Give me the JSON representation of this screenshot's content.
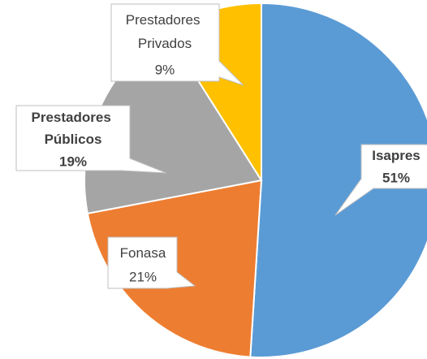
{
  "chart_data": {
    "type": "pie",
    "categories": [
      "Isapres",
      "Fonasa",
      "Prestadores Públicos",
      "Prestadores Privados"
    ],
    "values": [
      51,
      21,
      19,
      9
    ],
    "value_labels": [
      "51%",
      "21%",
      "19%",
      "9%"
    ],
    "colors": [
      "#5B9BD5",
      "#ED7D31",
      "#A5A5A5",
      "#FFC000"
    ]
  }
}
